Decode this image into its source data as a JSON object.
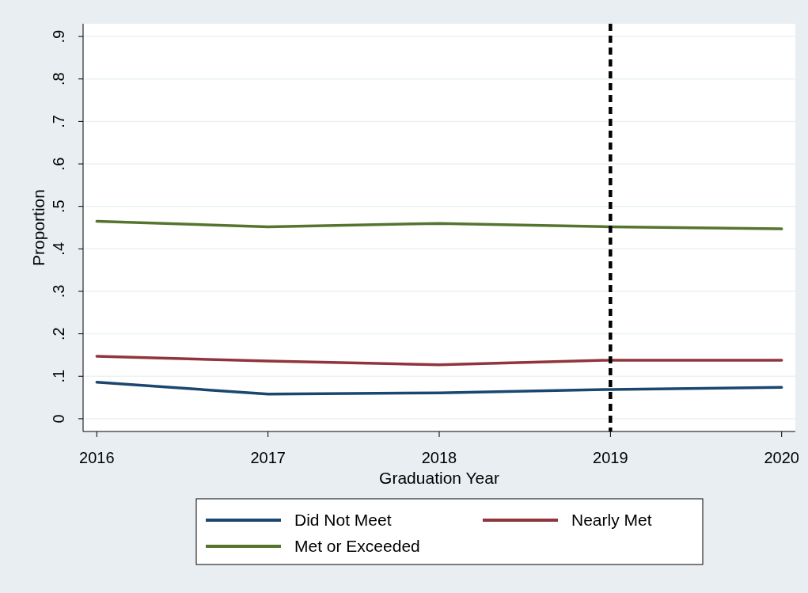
{
  "chart_data": {
    "type": "line",
    "xlabel": "Graduation Year",
    "ylabel": "Proportion",
    "x": [
      2016,
      2017,
      2018,
      2019,
      2020
    ],
    "series": [
      {
        "name": "Did Not Meet",
        "color": "#1a476f",
        "values": [
          0.086,
          0.058,
          0.061,
          0.069,
          0.074
        ]
      },
      {
        "name": "Nearly Met",
        "color": "#90353b",
        "values": [
          0.147,
          0.136,
          0.127,
          0.138,
          0.138
        ]
      },
      {
        "name": "Met or Exceeded",
        "color": "#55752f",
        "values": [
          0.465,
          0.452,
          0.46,
          0.452,
          0.447
        ]
      }
    ],
    "xlim": [
      2015.92,
      2020.08
    ],
    "xticks": [
      2016,
      2017,
      2018,
      2019,
      2020
    ],
    "ylim": [
      -0.03,
      0.93
    ],
    "yticks": [
      0,
      {
        "value": 0.1,
        "label": ".1"
      },
      {
        "value": 0.2,
        "label": ".2"
      },
      {
        "value": 0.3,
        "label": ".3"
      },
      {
        "value": 0.4,
        "label": ".4"
      },
      {
        "value": 0.5,
        "label": ".5"
      },
      {
        "value": 0.6,
        "label": ".6"
      },
      {
        "value": 0.7,
        "label": ".7"
      },
      {
        "value": 0.8,
        "label": ".8"
      },
      {
        "value": 0.9,
        "label": ".9"
      }
    ],
    "ref_lines": [
      {
        "axis": "x",
        "value": 2019,
        "color": "#000000",
        "line_style": "dashed"
      }
    ],
    "grid": "y",
    "legend": "bottom",
    "marker": "none",
    "line_style": "solid"
  }
}
